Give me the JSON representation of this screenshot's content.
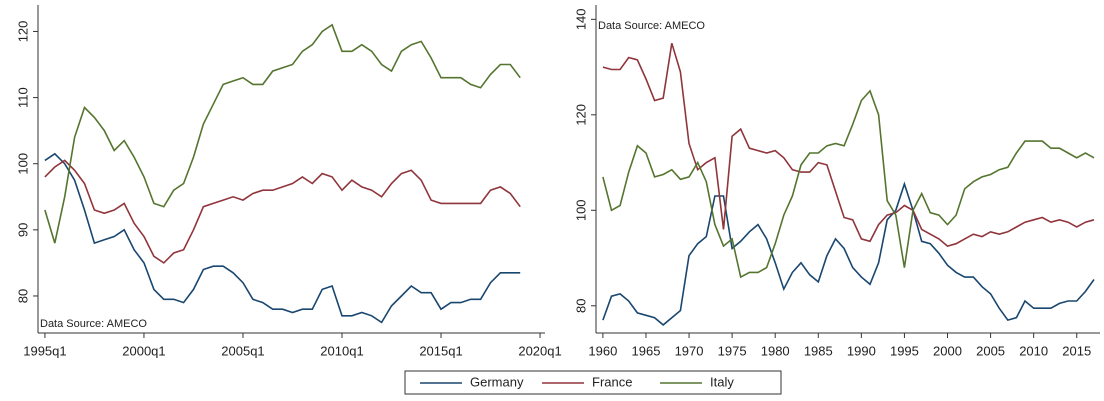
{
  "chart_data": [
    {
      "type": "line",
      "annotation": "Data Source: AMECO",
      "x": [
        1995,
        1995.5,
        1996,
        1996.5,
        1997,
        1997.5,
        1998,
        1998.5,
        1999,
        1999.5,
        2000,
        2000.5,
        2001,
        2001.5,
        2002,
        2002.5,
        2003,
        2003.5,
        2004,
        2004.5,
        2005,
        2005.5,
        2006,
        2006.5,
        2007,
        2007.5,
        2008,
        2008.5,
        2009,
        2009.5,
        2010,
        2010.5,
        2011,
        2011.5,
        2012,
        2012.5,
        2013,
        2013.5,
        2014,
        2014.5,
        2015,
        2015.5,
        2016,
        2016.5,
        2017,
        2017.5,
        2018,
        2018.5,
        2019
      ],
      "xlim": [
        1994.65,
        2020.25
      ],
      "xticks": [
        {
          "value": 1995,
          "label": "1995q1"
        },
        {
          "value": 2000,
          "label": "2000q1"
        },
        {
          "value": 2005,
          "label": "2005q1"
        },
        {
          "value": 2010,
          "label": "2010q1"
        },
        {
          "value": 2015,
          "label": "2015q1"
        },
        {
          "value": 2020,
          "label": "2020q1"
        }
      ],
      "ylim": [
        74.4,
        124
      ],
      "yticks": [
        80,
        90,
        100,
        110,
        120
      ],
      "series": [
        {
          "name": "Germany",
          "color": "#1a476f",
          "values": [
            100.5,
            101.5,
            100,
            97.5,
            93,
            88,
            88.5,
            89,
            90,
            87,
            85,
            81,
            79.5,
            79.5,
            79,
            81,
            84,
            84.5,
            84.5,
            83.5,
            82,
            79.5,
            79,
            78,
            78,
            77.5,
            78,
            78,
            81,
            81.5,
            77,
            77,
            77.5,
            77,
            76,
            78.5,
            80,
            81.5,
            80.5,
            80.5,
            78,
            79,
            79,
            79.5,
            79.5,
            82,
            83.5,
            83.5,
            83.5
          ]
        },
        {
          "name": "France",
          "color": "#90353b",
          "values": [
            98,
            99.5,
            100.5,
            99,
            97,
            93,
            92.5,
            93,
            94,
            91,
            89,
            86,
            85,
            86.5,
            87,
            90,
            93.5,
            94,
            94.5,
            95,
            94.5,
            95.5,
            96,
            96,
            96.5,
            97,
            98,
            97,
            98.5,
            98,
            96,
            97.5,
            96.5,
            96,
            95,
            97,
            98.5,
            99,
            97.5,
            94.5,
            94,
            94,
            94,
            94,
            94,
            96,
            96.5,
            95.5,
            93.5
          ]
        },
        {
          "name": "Italy",
          "color": "#55752f",
          "values": [
            93,
            88,
            95,
            104,
            108.5,
            107,
            105,
            102,
            103.5,
            101,
            98,
            94,
            93.5,
            96,
            97,
            101,
            106,
            109,
            112,
            112.5,
            113,
            112,
            112,
            114,
            114.5,
            115,
            117,
            118,
            120,
            121,
            117,
            117,
            118,
            117,
            115,
            114,
            117,
            118,
            118.5,
            116,
            113,
            113,
            113,
            112,
            111.5,
            113.5,
            115,
            115,
            113
          ]
        }
      ]
    },
    {
      "type": "line",
      "annotation": "Data Source: AMECO",
      "x": [
        1960,
        1961,
        1962,
        1963,
        1964,
        1965,
        1966,
        1967,
        1968,
        1969,
        1970,
        1971,
        1972,
        1973,
        1974,
        1975,
        1976,
        1977,
        1978,
        1979,
        1980,
        1981,
        1982,
        1983,
        1984,
        1985,
        1986,
        1987,
        1988,
        1989,
        1990,
        1991,
        1992,
        1993,
        1994,
        1995,
        1996,
        1997,
        1998,
        1999,
        2000,
        2001,
        2002,
        2003,
        2004,
        2005,
        2006,
        2007,
        2008,
        2009,
        2010,
        2011,
        2012,
        2013,
        2014,
        2015,
        2016,
        2017
      ],
      "xlim": [
        1959.2,
        2017.7
      ],
      "xticks": [
        1960,
        1965,
        1970,
        1975,
        1980,
        1985,
        1990,
        1995,
        2000,
        2005,
        2010,
        2015
      ],
      "ylim": [
        74.3,
        143
      ],
      "yticks": [
        80,
        100,
        120,
        140
      ],
      "series": [
        {
          "name": "Germany",
          "color": "#1a476f",
          "values": [
            77,
            82,
            82.5,
            81,
            78.5,
            78,
            77.5,
            76,
            77.5,
            79,
            90.5,
            93,
            94.5,
            103,
            103,
            92,
            93.5,
            95.5,
            97,
            94,
            89,
            83.5,
            87,
            89,
            86.5,
            85,
            90.5,
            94,
            92,
            88,
            86,
            84.5,
            89,
            98,
            100,
            105.5,
            100,
            93.5,
            93,
            91,
            88.5,
            87,
            86,
            86,
            84,
            82.5,
            79.5,
            77,
            77.5,
            81,
            79.5,
            79.5,
            79.5,
            80.5,
            81,
            81,
            83,
            85.5
          ]
        },
        {
          "name": "France",
          "color": "#90353b",
          "values": [
            130,
            129.5,
            129.5,
            132,
            131.5,
            127.5,
            123,
            123.5,
            135,
            129,
            114,
            108.5,
            110,
            111,
            96,
            115.5,
            117,
            113,
            112.5,
            112,
            112.5,
            111,
            108.5,
            108,
            108,
            110,
            109.5,
            104,
            98.5,
            98,
            94,
            93.5,
            97,
            99,
            99.5,
            101,
            100,
            96,
            95,
            94,
            92.5,
            93,
            94,
            95,
            94.5,
            95.5,
            95,
            95.5,
            96.5,
            97.5,
            98,
            98.5,
            97.5,
            98,
            97.5,
            96.5,
            97.5,
            98
          ]
        },
        {
          "name": "Italy",
          "color": "#55752f",
          "values": [
            107,
            100,
            101,
            108,
            113.5,
            112,
            107,
            107.5,
            108.5,
            106.5,
            107,
            110,
            106,
            97,
            92.5,
            94,
            86,
            87,
            87,
            88,
            93,
            99,
            103,
            109.5,
            112,
            112,
            113.5,
            114,
            113.5,
            118,
            123,
            125,
            120,
            102,
            99,
            88,
            100,
            103.5,
            99.5,
            99,
            97,
            99,
            104.5,
            106,
            107,
            107.5,
            108.5,
            109,
            112,
            114.5,
            114.5,
            114.5,
            113,
            113,
            112,
            111,
            112,
            111
          ]
        }
      ]
    }
  ]
}
